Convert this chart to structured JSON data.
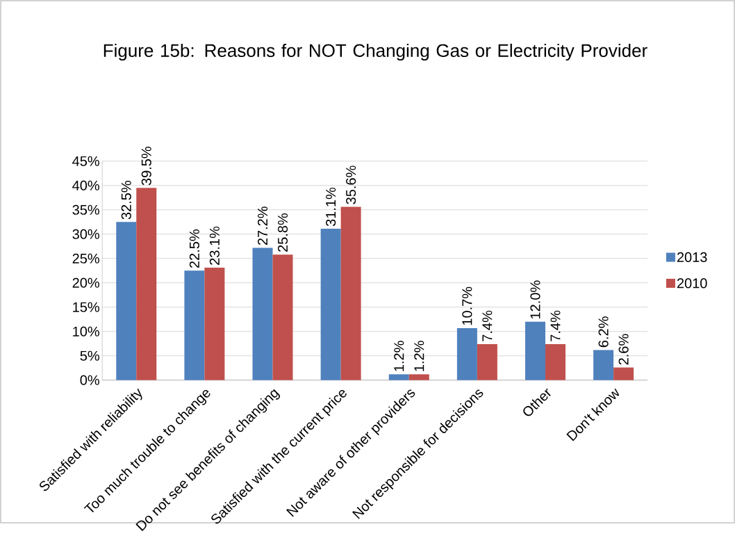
{
  "chart_data": {
    "type": "bar",
    "title": "Figure 15b: Reasons for NOT Changing Gas or Electricity Provider",
    "categories": [
      "Satisfied with reliability",
      "Too much trouble to change",
      "Do not see benefits of changing",
      "Satisfied with the current price",
      "Not aware of other providers",
      "Not responsible for decisions",
      "Other",
      "Don't know"
    ],
    "series": [
      {
        "name": "2013",
        "color": "#4f81bd",
        "values": [
          32.5,
          22.5,
          27.2,
          31.1,
          1.2,
          10.7,
          12.0,
          6.2
        ],
        "value_labels": [
          "32.5%",
          "22.5%",
          "27.2%",
          "31.1%",
          "1.2%",
          "10.7%",
          "12.0%",
          "6.2%"
        ]
      },
      {
        "name": "2010",
        "color": "#c0504d",
        "values": [
          39.5,
          23.1,
          25.8,
          35.6,
          1.2,
          7.4,
          7.4,
          2.6
        ],
        "value_labels": [
          "39.5%",
          "23.1%",
          "25.8%",
          "35.6%",
          "1.2%",
          "7.4%",
          "7.4%",
          "2.6%"
        ]
      }
    ],
    "ylim": [
      0,
      45
    ],
    "yticks": [
      {
        "value": 0,
        "label": "0%"
      },
      {
        "value": 5,
        "label": "5%"
      },
      {
        "value": 10,
        "label": "10%"
      },
      {
        "value": 15,
        "label": "15%"
      },
      {
        "value": 20,
        "label": "20%"
      },
      {
        "value": 25,
        "label": "25%"
      },
      {
        "value": 30,
        "label": "30%"
      },
      {
        "value": 35,
        "label": "35%"
      },
      {
        "value": 40,
        "label": "40%"
      },
      {
        "value": 45,
        "label": "45%"
      }
    ],
    "grid": "y",
    "legend": "right"
  }
}
